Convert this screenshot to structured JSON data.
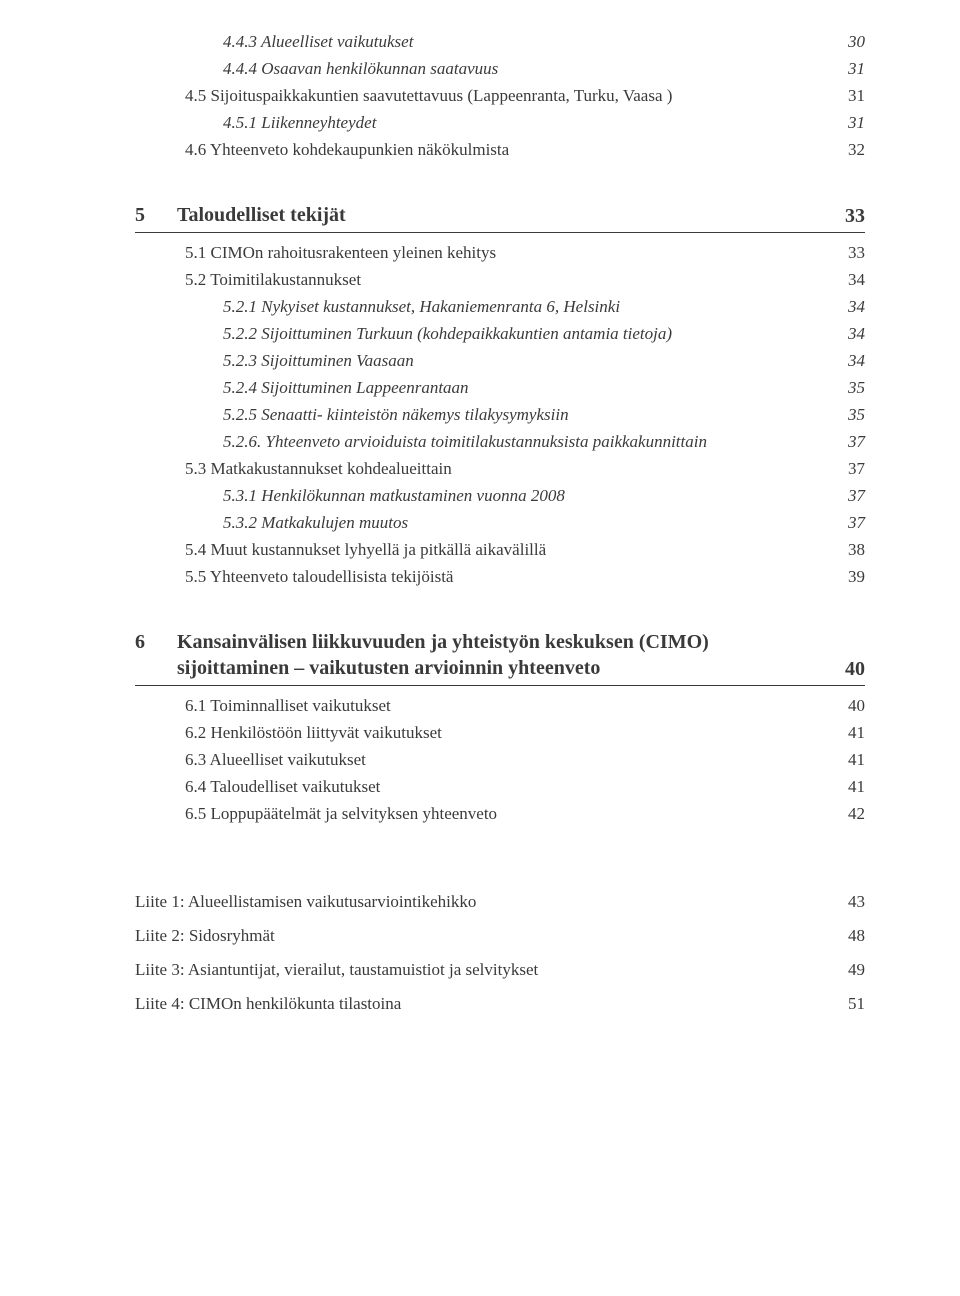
{
  "preSection": {
    "entries": [
      {
        "text": "4.4.3 Alueelliset vaikutukset",
        "page": "30",
        "indent": 3,
        "italic": true
      },
      {
        "text": "4.4.4 Osaavan henkilökunnan saatavuus",
        "page": "31",
        "indent": 3,
        "italic": true
      },
      {
        "text": "4.5 Sijoituspaikkakuntien saavutettavuus (Lappeenranta, Turku, Vaasa )",
        "page": "31",
        "indent": 2
      },
      {
        "text": "4.5.1 Liikenneyhteydet",
        "page": "31",
        "indent": 3,
        "italic": true
      },
      {
        "text": "4.6 Yhteenveto kohdekaupunkien näkökulmista",
        "page": "32",
        "indent": 2
      }
    ]
  },
  "sections": [
    {
      "number": "5",
      "title": "Taloudelliset tekijät",
      "page": "33",
      "entries": [
        {
          "text": "5.1 CIMOn rahoitusrakenteen yleinen kehitys",
          "page": "33",
          "indent": 2
        },
        {
          "text": "5.2 Toimitilakustannukset",
          "page": "34",
          "indent": 2
        },
        {
          "text": "5.2.1 Nykyiset kustannukset, Hakaniemenranta 6, Helsinki",
          "page": "34",
          "indent": 3,
          "italic": true
        },
        {
          "text": "5.2.2 Sijoittuminen Turkuun (kohdepaikkakuntien antamia tietoja)",
          "page": "34",
          "indent": 3,
          "italic": true
        },
        {
          "text": "5.2.3 Sijoittuminen Vaasaan",
          "page": "34",
          "indent": 3,
          "italic": true
        },
        {
          "text": "5.2.4 Sijoittuminen Lappeenrantaan",
          "page": "35",
          "indent": 3,
          "italic": true
        },
        {
          "text": "5.2.5 Senaatti- kiinteistön näkemys tilakysymyksiin",
          "page": "35",
          "indent": 3,
          "italic": true
        },
        {
          "text": "5.2.6. Yhteenveto arvioiduista toimitilakustannuksista paikkakunnittain",
          "page": "37",
          "indent": 3,
          "italic": true
        },
        {
          "text": "5.3 Matkakustannukset kohdealueittain",
          "page": "37",
          "indent": 2
        },
        {
          "text": "5.3.1 Henkilökunnan matkustaminen vuonna 2008",
          "page": "37",
          "indent": 3,
          "italic": true
        },
        {
          "text": "5.3.2 Matkakulujen muutos",
          "page": "37",
          "indent": 3,
          "italic": true
        },
        {
          "text": "5.4 Muut kustannukset lyhyellä ja pitkällä aikavälillä",
          "page": "38",
          "indent": 2
        },
        {
          "text": "5.5 Yhteenveto taloudellisista tekijöistä",
          "page": "39",
          "indent": 2
        }
      ]
    },
    {
      "number": "6",
      "title": "Kansainvälisen liikkuvuuden ja yhteistyön keskuksen (CIMO) sijoittaminen – vaikutusten arvioinnin yhteenveto",
      "page": "40",
      "multiline": true,
      "entries": [
        {
          "text": "6.1 Toiminnalliset vaikutukset",
          "page": "40",
          "indent": 2
        },
        {
          "text": "6.2 Henkilöstöön liittyvät vaikutukset",
          "page": "41",
          "indent": 2
        },
        {
          "text": "6.3 Alueelliset vaikutukset",
          "page": "41",
          "indent": 2
        },
        {
          "text": "6.4 Taloudelliset vaikutukset",
          "page": "41",
          "indent": 2
        },
        {
          "text": "6.5 Loppupäätelmät ja selvityksen yhteenveto",
          "page": "42",
          "indent": 2
        }
      ]
    }
  ],
  "appendices": [
    {
      "text": "Liite 1: Alueellistamisen vaikutusarviointikehikko",
      "page": "43"
    },
    {
      "text": "Liite 2: Sidosryhmät",
      "page": "48"
    },
    {
      "text": "Liite 3: Asiantuntijat, vierailut, taustamuistiot ja selvitykset",
      "page": "49"
    },
    {
      "text": "Liite 4: CIMOn henkilökunta tilastoina",
      "page": "51"
    }
  ]
}
